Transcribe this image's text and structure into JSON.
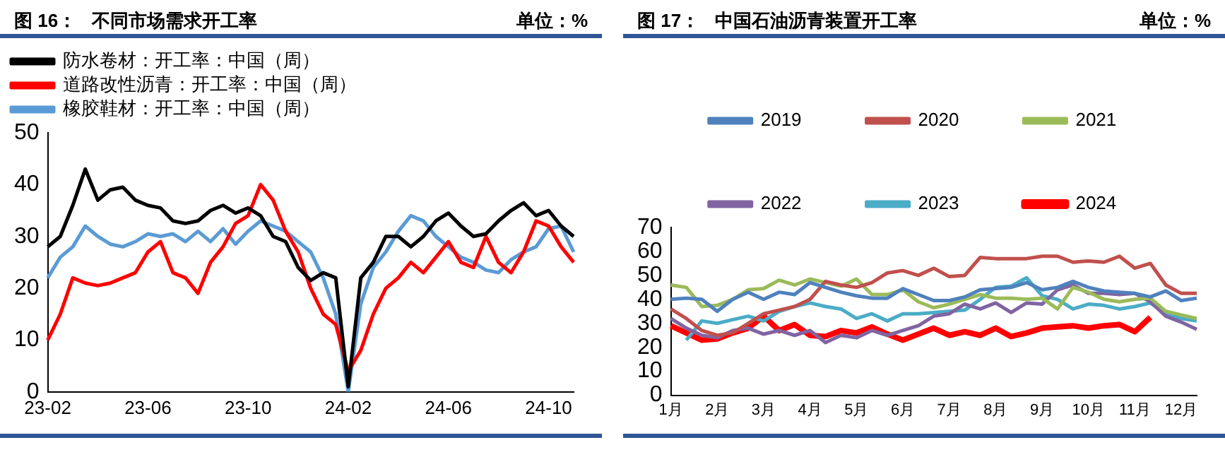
{
  "chart_data": [
    {
      "type": "line",
      "title": "图 16：   不同市场需求开工率",
      "subtitle": "单位：%",
      "categories": [
        "23-02",
        null,
        null,
        null,
        null,
        null,
        null,
        null,
        "23-06",
        null,
        null,
        null,
        null,
        null,
        null,
        null,
        "23-10",
        null,
        null,
        null,
        null,
        null,
        null,
        null,
        "24-02",
        null,
        null,
        null,
        null,
        null,
        null,
        null,
        "24-06",
        null,
        null,
        null,
        null,
        null,
        null,
        null,
        "24-10",
        null,
        null
      ],
      "series": [
        {
          "name": "防水卷材：开工率：中国（周）",
          "color": "#000000",
          "values": [
            28,
            30,
            36,
            43,
            37,
            39,
            39.5,
            37,
            36,
            35.5,
            33,
            32.5,
            33,
            35,
            36,
            34.5,
            35.5,
            34,
            30,
            29,
            24,
            21.5,
            23,
            22,
            1,
            22,
            25,
            30,
            30,
            28,
            30,
            33,
            34.5,
            32,
            30,
            30.5,
            33,
            35,
            36.5,
            34,
            35,
            32,
            30
          ]
        },
        {
          "name": "道路改性沥青：开工率：中国（周）",
          "color": "#ff0000",
          "values": [
            10,
            15,
            22,
            21,
            20.5,
            21,
            22,
            23,
            27,
            29,
            23,
            22,
            19,
            25,
            28,
            32.5,
            34,
            40,
            37,
            31,
            27,
            20,
            15,
            13,
            4,
            8,
            15,
            20,
            22,
            25,
            23,
            26,
            29,
            25,
            24,
            30,
            25,
            23,
            27,
            33,
            32,
            28,
            25
          ]
        },
        {
          "name": "橡胶鞋材：开工率：中国（周）",
          "color": "#5b9bd5",
          "values": [
            22,
            26,
            28,
            32,
            30,
            28.5,
            28,
            29,
            30.5,
            30,
            30.5,
            29,
            31,
            29,
            31.5,
            28.5,
            31,
            33,
            32,
            31,
            29,
            27,
            22,
            15,
            0,
            17,
            24,
            27,
            31,
            34,
            33,
            30,
            28,
            26,
            25,
            23.5,
            23,
            25.5,
            27,
            28,
            31.5,
            32,
            27
          ]
        }
      ],
      "ylim": [
        0,
        50
      ],
      "yticks": [
        0,
        10,
        20,
        30,
        40,
        50
      ],
      "grid": false,
      "legend": "top",
      "marker": "none"
    },
    {
      "type": "line",
      "title": "图 17：   中国石油沥青装置开工率",
      "subtitle": "单位：%",
      "categories": [
        "1月",
        null,
        null,
        "2月",
        null,
        null,
        "3月",
        null,
        null,
        "4月",
        null,
        null,
        "5月",
        null,
        null,
        "6月",
        null,
        null,
        "7月",
        null,
        null,
        "8月",
        null,
        null,
        "9月",
        null,
        null,
        "10月",
        null,
        null,
        "11月",
        null,
        null,
        "12月",
        null
      ],
      "series": [
        {
          "name": "2019",
          "color": "#4f81bd",
          "values": [
            40,
            40.5,
            40,
            35,
            40,
            43,
            40,
            43,
            42,
            47,
            45,
            43,
            41.5,
            40.5,
            40.5,
            44.5,
            42,
            39.5,
            39.5,
            41,
            44,
            44.5,
            45,
            47,
            44,
            45,
            47.5,
            45,
            43.5,
            43,
            42.5,
            41,
            43.5,
            39.5,
            40.5
          ]
        },
        {
          "name": "2020",
          "color": "#c0504d",
          "values": [
            36,
            32,
            27,
            25,
            26,
            30,
            34,
            35.5,
            37,
            40,
            47.5,
            46,
            45,
            47,
            51,
            52,
            50,
            53,
            49.5,
            50,
            57.5,
            57,
            57,
            57,
            58,
            58,
            55.5,
            56,
            55.5,
            58,
            53,
            55,
            46,
            42.5,
            42.5
          ]
        },
        {
          "name": "2021",
          "color": "#9bbb59",
          "values": [
            46,
            45,
            37,
            37.5,
            40,
            44,
            44.5,
            48,
            46,
            48.5,
            47,
            45.5,
            48.5,
            42,
            42,
            44,
            39,
            36.5,
            38,
            40,
            42,
            40.5,
            40.5,
            40,
            40.5,
            36,
            45,
            43,
            40,
            39,
            40,
            40.5,
            35,
            33.5,
            32
          ]
        },
        {
          "name": "2022",
          "color": "#8064a2",
          "values": [
            32,
            28,
            25,
            24,
            27,
            28,
            25.5,
            27,
            25,
            27,
            22,
            25,
            24,
            27,
            25,
            27,
            29,
            33,
            34,
            38,
            36,
            38.5,
            34.5,
            38.5,
            38,
            44,
            46,
            42.5,
            42.5,
            42,
            42.5,
            39,
            33,
            30.5,
            27.5
          ]
        },
        {
          "name": "2023",
          "color": "#4bacc6",
          "values": [
            null,
            23,
            31,
            30,
            31.5,
            33,
            31,
            35,
            37,
            38.5,
            37,
            36,
            32,
            34,
            31,
            34,
            34,
            34.5,
            35,
            35.5,
            40,
            45,
            45.5,
            49,
            41.5,
            40,
            36,
            38,
            37.5,
            36,
            37,
            38.5,
            34,
            32,
            31
          ]
        },
        {
          "name": "2024",
          "color": "#ff0000",
          "values": [
            29,
            26,
            23,
            23.5,
            26,
            28,
            33,
            27,
            29.5,
            25,
            24.5,
            27,
            26,
            28.5,
            25.5,
            23,
            25.5,
            28,
            25,
            26.5,
            25,
            28,
            24.5,
            26,
            28,
            28.5,
            29,
            28,
            29,
            29.5,
            26.5,
            32.5,
            null,
            null,
            null
          ]
        }
      ],
      "ylim": [
        0,
        70
      ],
      "yticks": [
        0,
        10,
        20,
        30,
        40,
        50,
        60,
        70
      ],
      "grid": false,
      "legend": "top",
      "marker": "none"
    }
  ]
}
